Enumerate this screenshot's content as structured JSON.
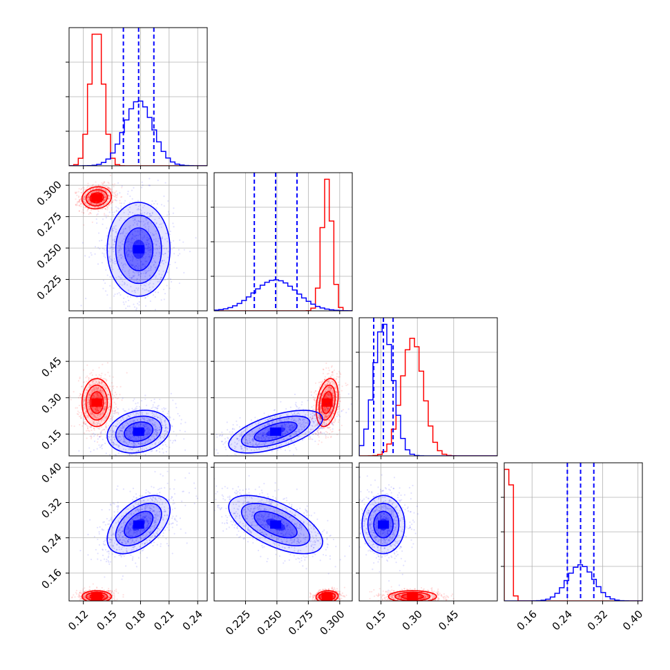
{
  "chart_data": {
    "type": "corner",
    "title": "",
    "parameters": [
      "",
      "",
      "",
      ""
    ],
    "grid": true,
    "series": [
      {
        "color": "#ff0000",
        "means": [
          0.134,
          0.29,
          0.28,
          0.107
        ],
        "sds": [
          0.007,
          0.004,
          0.045,
          0.006
        ],
        "correlations": [
          [
            1,
            0.1,
            0.0,
            0.0
          ],
          [
            0.1,
            1,
            0.3,
            0.1
          ],
          [
            0.0,
            0.3,
            1,
            0.0
          ],
          [
            0.0,
            0.1,
            0.0,
            1
          ]
        ],
        "quantile_lines": []
      },
      {
        "color": "#0000ff",
        "means": [
          0.178,
          0.249,
          0.16,
          0.27
        ],
        "sds": [
          0.015,
          0.017,
          0.04,
          0.03
        ],
        "correlations": [
          [
            1,
            0.0,
            0.2,
            0.5
          ],
          [
            0.0,
            1,
            0.6,
            -0.6
          ],
          [
            0.2,
            0.6,
            1,
            0.0
          ],
          [
            0.5,
            -0.6,
            0.0,
            1
          ]
        ],
        "quantile_lines": [
          [
            0.162,
            0.178,
            0.194
          ],
          [
            0.232,
            0.249,
            0.266
          ],
          [
            0.12,
            0.16,
            0.2
          ],
          [
            0.24,
            0.27,
            0.3
          ]
        ]
      }
    ],
    "ranges": [
      [
        0.105,
        0.25
      ],
      [
        0.2,
        0.31
      ],
      [
        0.06,
        0.63
      ],
      [
        0.097,
        0.41
      ]
    ],
    "hist_ymax": [
      1.0,
      1.0,
      1.0,
      1.0
    ],
    "x_ticks": [
      [
        0.12,
        0.15,
        0.18,
        0.21,
        0.24
      ],
      [
        0.225,
        0.25,
        0.275,
        0.3
      ],
      [
        0.15,
        0.3,
        0.45
      ],
      [
        0.16,
        0.24,
        0.32,
        0.4
      ]
    ],
    "x_tick_labels": [
      [
        "0.12",
        "0.15",
        "0.18",
        "0.21",
        "0.24"
      ],
      [
        "0.225",
        "0.250",
        "0.275",
        "0.300"
      ],
      [
        "0.15",
        "0.30",
        "0.45"
      ],
      [
        "0.16",
        "0.24",
        "0.32",
        "0.40"
      ]
    ],
    "y_ticks": [
      [],
      [
        0.225,
        0.25,
        0.275,
        0.3
      ],
      [
        0.15,
        0.3,
        0.45
      ],
      [
        0.16,
        0.24,
        0.32,
        0.4
      ]
    ],
    "y_tick_labels": [
      [],
      [
        "0.225",
        "0.250",
        "0.275",
        "0.300"
      ],
      [
        "0.15",
        "0.30",
        "0.45"
      ],
      [
        "0.16",
        "0.24",
        "0.32",
        "0.40"
      ]
    ]
  }
}
